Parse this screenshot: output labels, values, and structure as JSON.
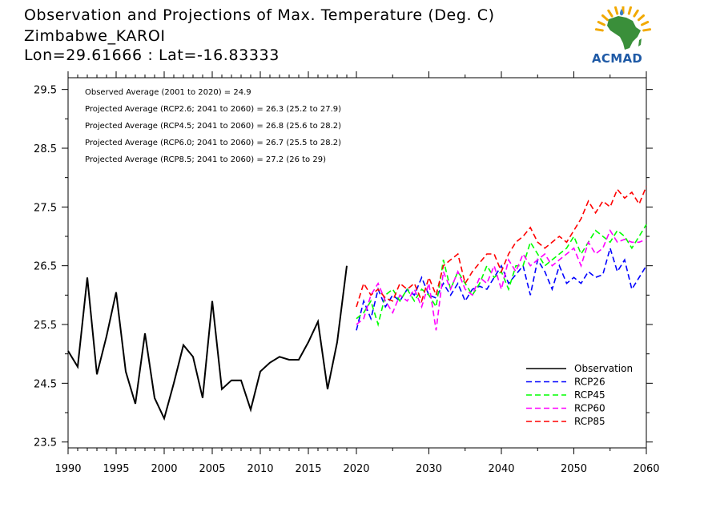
{
  "header": {
    "title": "Observation and Projections of Max. Temperature (Deg. C)",
    "station": "Zimbabwe_KAROI",
    "coords": "Lon=29.61666 : Lat=-16.83333"
  },
  "logo": {
    "label": "ACMAD",
    "colors": {
      "africa": "#3a8f3a",
      "text": "#1f5aa6",
      "sun": "#f2a900"
    }
  },
  "stats": [
    "Observed Average (2001 to 2020) = 24.9",
    "Projected Average (RCP2.6; 2041 to 2060) = 26.3 (25.2 to 27.9)",
    "Projected Average (RCP4.5; 2041 to 2060) = 26.8 (25.6 to 28.2)",
    "Projected Average (RCP6.0; 2041 to 2060) = 26.7 (25.5 to 28.2)",
    "Projected Average (RCP8.5; 2041 to 2060) = 27.2 (26 to 29)"
  ],
  "chart_data": {
    "type": "line",
    "xlim": [
      1990,
      2060
    ],
    "ylim": [
      23.4,
      29.7
    ],
    "y_ticks": [
      23.5,
      24.5,
      25.5,
      26.5,
      27.5,
      28.5,
      29.5
    ],
    "y_tick_labels": [
      "23.5",
      "24.5",
      "25.5",
      "26.5",
      "27.5",
      "28.5",
      "29.5"
    ],
    "x_ticks": [
      1990,
      1995,
      2000,
      2005,
      2010,
      2015,
      2020,
      2030,
      2040,
      2050,
      2060
    ],
    "x_tick_labels": [
      "1990",
      "1995",
      "2000",
      "2005",
      "2010",
      "2015",
      "2020",
      "2030",
      "2040",
      "2050",
      "2060"
    ],
    "legend_position": "bottom-right",
    "series": [
      {
        "name": "Observation",
        "color": "#000000",
        "dash": "solid",
        "x": [
          1990,
          1991,
          1992,
          1993,
          1994,
          1995,
          1996,
          1997,
          1998,
          1999,
          2000,
          2001,
          2002,
          2003,
          2004,
          2005,
          2006,
          2007,
          2008,
          2009,
          2010,
          2011,
          2012,
          2013,
          2014,
          2015,
          2016,
          2017,
          2018,
          2019,
          2020
        ],
        "values": [
          25.05,
          24.78,
          26.3,
          24.65,
          25.3,
          26.05,
          24.7,
          24.15,
          25.35,
          24.25,
          23.9,
          24.5,
          25.15,
          24.95,
          24.25,
          25.9,
          24.4,
          24.55,
          24.55,
          24.05,
          24.7,
          24.85,
          24.95,
          24.9,
          24.9,
          25.2,
          25.55,
          24.4,
          25.2,
          26.5,
          null
        ]
      },
      {
        "name": "RCP26",
        "color": "#0000ff",
        "dash": "dashed",
        "x": [
          2020,
          2021,
          2022,
          2023,
          2024,
          2025,
          2026,
          2027,
          2028,
          2029,
          2030,
          2031,
          2032,
          2033,
          2034,
          2035,
          2036,
          2037,
          2038,
          2039,
          2040,
          2041,
          2042,
          2043,
          2044,
          2045,
          2046,
          2047,
          2048,
          2049,
          2050,
          2051,
          2052,
          2053,
          2054,
          2055,
          2056,
          2057,
          2058,
          2059,
          2060
        ],
        "values": [
          25.4,
          25.9,
          25.6,
          26.1,
          25.8,
          26.0,
          25.9,
          26.1,
          26.0,
          26.3,
          26.0,
          25.95,
          26.2,
          26.0,
          26.2,
          25.9,
          26.1,
          26.15,
          26.1,
          26.3,
          26.5,
          26.2,
          26.35,
          26.5,
          26.0,
          26.6,
          26.4,
          26.1,
          26.5,
          26.2,
          26.3,
          26.2,
          26.4,
          26.3,
          26.35,
          26.8,
          26.4,
          26.6,
          26.1,
          26.3,
          26.5
        ]
      },
      {
        "name": "RCP45",
        "color": "#00ff00",
        "dash": "dashed",
        "x": [
          2020,
          2021,
          2022,
          2023,
          2024,
          2025,
          2026,
          2027,
          2028,
          2029,
          2030,
          2031,
          2032,
          2033,
          2034,
          2035,
          2036,
          2037,
          2038,
          2039,
          2040,
          2041,
          2042,
          2043,
          2044,
          2045,
          2046,
          2047,
          2048,
          2049,
          2050,
          2051,
          2052,
          2053,
          2054,
          2055,
          2056,
          2057,
          2058,
          2059,
          2060
        ],
        "values": [
          25.6,
          25.7,
          25.9,
          25.5,
          26.0,
          26.1,
          25.9,
          26.1,
          25.9,
          26.1,
          26.0,
          25.8,
          26.6,
          26.1,
          26.4,
          26.2,
          26.0,
          26.2,
          26.5,
          26.3,
          26.4,
          26.1,
          26.5,
          26.5,
          26.9,
          26.7,
          26.5,
          26.6,
          26.7,
          26.8,
          27.0,
          26.7,
          26.9,
          27.1,
          27.0,
          26.9,
          27.1,
          27.0,
          26.8,
          27.0,
          27.2
        ]
      },
      {
        "name": "RCP60",
        "color": "#ff00ff",
        "dash": "dashed",
        "x": [
          2020,
          2021,
          2022,
          2023,
          2024,
          2025,
          2026,
          2027,
          2028,
          2029,
          2030,
          2031,
          2032,
          2033,
          2034,
          2035,
          2036,
          2037,
          2038,
          2039,
          2040,
          2041,
          2042,
          2043,
          2044,
          2045,
          2046,
          2047,
          2048,
          2049,
          2050,
          2051,
          2052,
          2053,
          2054,
          2055,
          2056,
          2057,
          2058,
          2059,
          2060
        ],
        "values": [
          25.5,
          25.6,
          26.0,
          26.2,
          25.9,
          25.7,
          26.0,
          25.9,
          26.1,
          25.8,
          26.2,
          25.4,
          26.4,
          26.1,
          26.4,
          26.1,
          26.0,
          26.3,
          26.2,
          26.5,
          26.1,
          26.6,
          26.4,
          26.7,
          26.5,
          26.6,
          26.7,
          26.5,
          26.6,
          26.7,
          26.8,
          26.5,
          26.9,
          26.7,
          26.8,
          27.1,
          26.9,
          26.95,
          26.9,
          26.9,
          26.95
        ]
      },
      {
        "name": "RCP85",
        "color": "#ff0000",
        "dash": "dashed",
        "x": [
          2020,
          2021,
          2022,
          2023,
          2024,
          2025,
          2026,
          2027,
          2028,
          2029,
          2030,
          2031,
          2032,
          2033,
          2034,
          2035,
          2036,
          2037,
          2038,
          2039,
          2040,
          2041,
          2042,
          2043,
          2044,
          2045,
          2046,
          2047,
          2048,
          2049,
          2050,
          2051,
          2052,
          2053,
          2054,
          2055,
          2056,
          2057,
          2058,
          2059,
          2060
        ],
        "values": [
          25.8,
          26.2,
          26.0,
          26.1,
          25.95,
          25.9,
          26.2,
          26.1,
          26.2,
          25.9,
          26.3,
          26.0,
          26.5,
          26.6,
          26.7,
          26.2,
          26.4,
          26.55,
          26.7,
          26.7,
          26.4,
          26.7,
          26.9,
          27.0,
          27.15,
          26.9,
          26.8,
          26.9,
          27.0,
          26.9,
          27.1,
          27.3,
          27.6,
          27.4,
          27.6,
          27.5,
          27.8,
          27.65,
          27.75,
          27.55,
          27.85
        ]
      }
    ]
  }
}
